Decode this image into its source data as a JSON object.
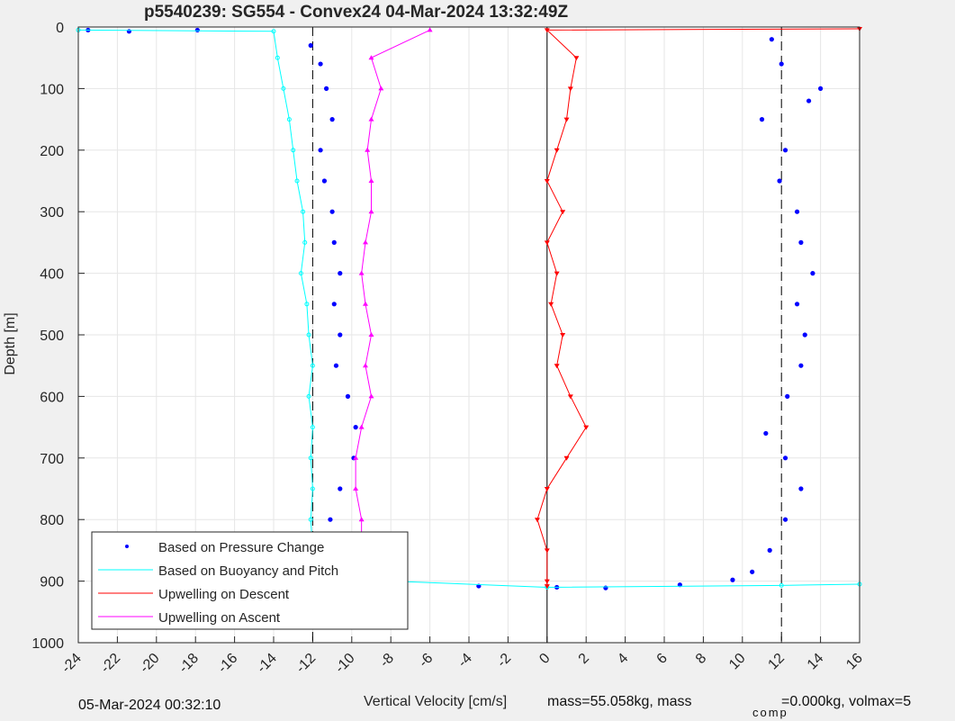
{
  "chart_data": {
    "type": "scatter",
    "title": "p5540239: SG554 - Convex24 04-Mar-2024 13:32:49Z",
    "xlabel": "Vertical Velocity [cm/s]",
    "ylabel": "Depth [m]",
    "xlim": [
      -24,
      16
    ],
    "ylim": [
      0,
      1000
    ],
    "y_reversed": true,
    "grid": true,
    "x_ticks": [
      -24,
      -22,
      -20,
      -18,
      -16,
      -14,
      -12,
      -10,
      -8,
      -6,
      -4,
      -2,
      0,
      2,
      4,
      6,
      8,
      10,
      12,
      14,
      16
    ],
    "y_ticks": [
      0,
      100,
      200,
      300,
      400,
      500,
      600,
      700,
      800,
      900,
      1000
    ],
    "reference_lines": [
      -12,
      0,
      12
    ],
    "legend_position": "bottom-left",
    "series": [
      {
        "name": "Based on Pressure Change",
        "color": "#0000ff",
        "points": [
          [
            -23.5,
            5
          ],
          [
            -21.4,
            7
          ],
          [
            -17.9,
            5
          ],
          [
            -12.1,
            30
          ],
          [
            -11.6,
            60
          ],
          [
            -11.3,
            100
          ],
          [
            -11.0,
            150
          ],
          [
            -11.6,
            200
          ],
          [
            -11.4,
            250
          ],
          [
            -11.0,
            300
          ],
          [
            -10.9,
            350
          ],
          [
            -10.6,
            400
          ],
          [
            -10.9,
            450
          ],
          [
            -10.6,
            500
          ],
          [
            -10.8,
            550
          ],
          [
            -10.2,
            600
          ],
          [
            -9.8,
            650
          ],
          [
            -9.9,
            700
          ],
          [
            -10.6,
            750
          ],
          [
            -11.1,
            800
          ],
          [
            -11.6,
            850
          ],
          [
            -12.0,
            900
          ],
          [
            -8.0,
            905
          ],
          [
            -3.5,
            908
          ],
          [
            0.5,
            910
          ],
          [
            3.0,
            911
          ],
          [
            6.8,
            906
          ],
          [
            9.5,
            898
          ],
          [
            10.5,
            885
          ],
          [
            11.4,
            850
          ],
          [
            12.2,
            800
          ],
          [
            13.0,
            750
          ],
          [
            12.2,
            700
          ],
          [
            11.2,
            660
          ],
          [
            12.3,
            600
          ],
          [
            13.0,
            550
          ],
          [
            13.2,
            500
          ],
          [
            12.8,
            450
          ],
          [
            13.6,
            400
          ],
          [
            13.0,
            350
          ],
          [
            12.8,
            300
          ],
          [
            11.9,
            250
          ],
          [
            12.2,
            200
          ],
          [
            11.0,
            150
          ],
          [
            13.4,
            120
          ],
          [
            14.0,
            100
          ],
          [
            12.0,
            60
          ],
          [
            11.5,
            20
          ]
        ]
      },
      {
        "name": "Based on Buoyancy and Pitch",
        "color": "#00ffff",
        "points": [
          [
            -24,
            5
          ],
          [
            -14,
            7
          ],
          [
            -13.8,
            50
          ],
          [
            -13.5,
            100
          ],
          [
            -13.2,
            150
          ],
          [
            -13.0,
            200
          ],
          [
            -12.8,
            250
          ],
          [
            -12.5,
            300
          ],
          [
            -12.4,
            350
          ],
          [
            -12.6,
            400
          ],
          [
            -12.3,
            450
          ],
          [
            -12.2,
            500
          ],
          [
            -12.0,
            550
          ],
          [
            -12.2,
            600
          ],
          [
            -12.0,
            650
          ],
          [
            -12.1,
            700
          ],
          [
            -12.0,
            750
          ],
          [
            -12.1,
            800
          ],
          [
            -12.0,
            850
          ],
          [
            -12.0,
            895
          ],
          [
            0,
            910
          ],
          [
            12,
            907
          ],
          [
            16,
            905
          ]
        ]
      },
      {
        "name": "Upwelling on Descent",
        "color": "#ff0000",
        "points": [
          [
            16,
            3
          ],
          [
            0,
            5
          ],
          [
            1.5,
            50
          ],
          [
            1.2,
            100
          ],
          [
            1.0,
            150
          ],
          [
            0.5,
            200
          ],
          [
            0.0,
            250
          ],
          [
            0.8,
            300
          ],
          [
            0.0,
            350
          ],
          [
            0.5,
            400
          ],
          [
            0.2,
            450
          ],
          [
            0.8,
            500
          ],
          [
            0.5,
            550
          ],
          [
            1.2,
            600
          ],
          [
            2.0,
            650
          ],
          [
            1.0,
            700
          ],
          [
            0.0,
            750
          ],
          [
            -0.5,
            800
          ],
          [
            0.0,
            850
          ],
          [
            0.0,
            900
          ],
          [
            0.0,
            908
          ]
        ]
      },
      {
        "name": "Upwelling on Ascent",
        "color": "#ff00ff",
        "points": [
          [
            -8.5,
            900
          ],
          [
            -9.5,
            850
          ],
          [
            -9.5,
            800
          ],
          [
            -9.8,
            750
          ],
          [
            -9.8,
            700
          ],
          [
            -9.5,
            650
          ],
          [
            -9.0,
            600
          ],
          [
            -9.3,
            550
          ],
          [
            -9.0,
            500
          ],
          [
            -9.3,
            450
          ],
          [
            -9.5,
            400
          ],
          [
            -9.3,
            350
          ],
          [
            -9.0,
            300
          ],
          [
            -9.0,
            250
          ],
          [
            -9.2,
            200
          ],
          [
            -9.0,
            150
          ],
          [
            -8.5,
            100
          ],
          [
            -9.0,
            50
          ],
          [
            -6.0,
            5
          ]
        ]
      }
    ]
  },
  "legend": {
    "pressure": "Based on Pressure Change",
    "buoyancy": "Based on Buoyancy and Pitch",
    "descent": "Upwelling on Descent",
    "ascent": "Upwelling on Ascent"
  },
  "footer": {
    "date": "05-Mar-2024 00:32:10",
    "mass_text": "mass=55.058kg, mass",
    "mass_sub": "comp",
    "vol_text": "=0.000kg, volmax=5"
  }
}
